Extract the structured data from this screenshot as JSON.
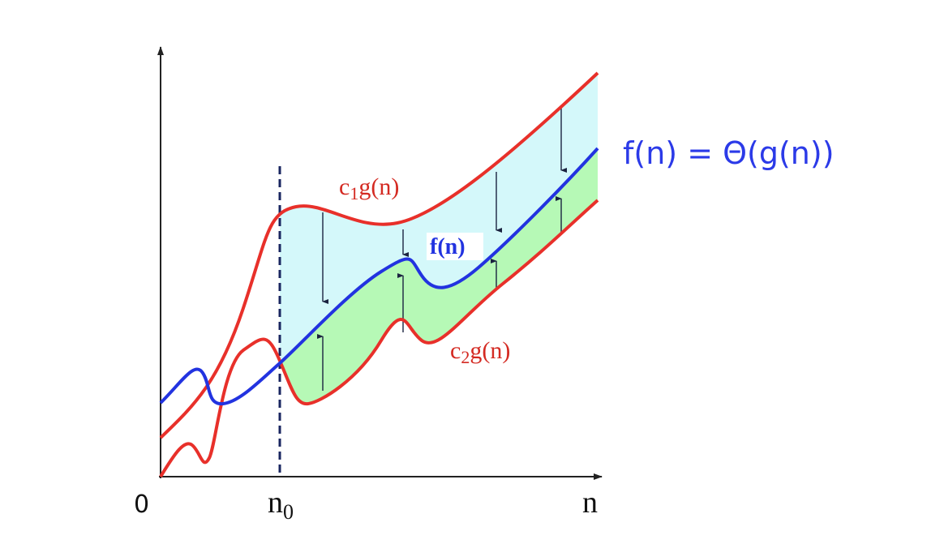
{
  "axis": {
    "origin": "0",
    "n0": {
      "base": "n",
      "sub": "0"
    },
    "n": "n"
  },
  "curves": {
    "upper": {
      "base": "c",
      "sub": "1",
      "rest": "g(n)"
    },
    "f": "f(n)",
    "lower": {
      "base": "c",
      "sub": "2",
      "rest": "g(n)"
    }
  },
  "formula": "f(n) = Θ(g(n))"
}
